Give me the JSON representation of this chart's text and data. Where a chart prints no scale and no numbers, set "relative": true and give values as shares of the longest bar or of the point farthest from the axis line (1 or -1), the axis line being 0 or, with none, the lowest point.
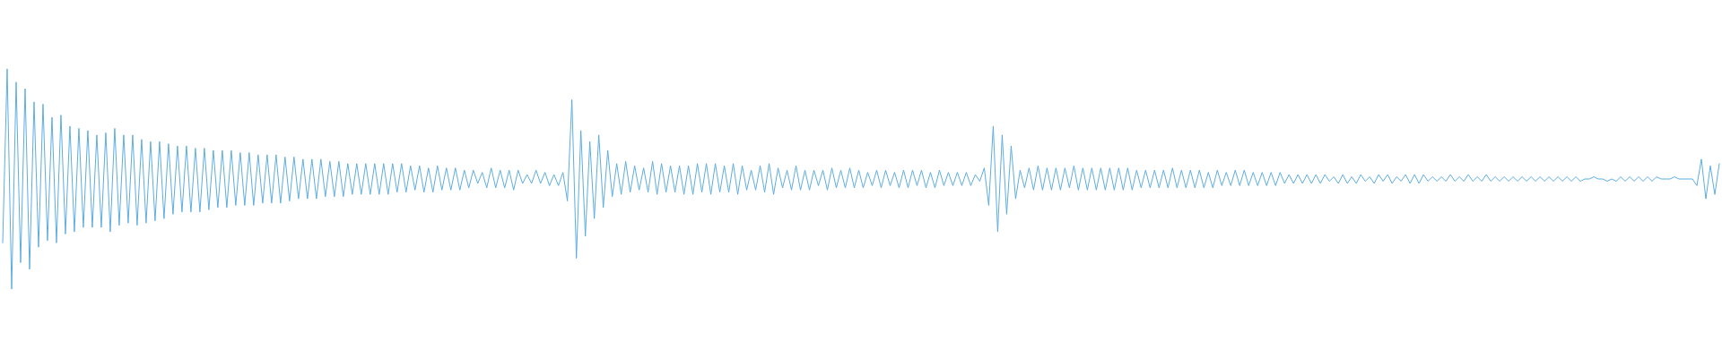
{
  "chart_data": {
    "type": "line",
    "relative": true,
    "marker": "none",
    "color": "#5dade2",
    "categories": [
      null,
      null,
      null,
      null,
      null,
      null,
      null,
      null,
      null,
      null,
      null,
      null,
      null,
      null,
      null,
      null,
      null,
      null,
      null,
      null,
      null,
      null,
      null,
      null,
      null,
      null,
      null,
      null,
      null,
      null,
      null,
      null,
      null,
      null,
      null,
      null,
      null,
      null,
      null,
      null,
      null,
      null,
      null,
      null,
      null,
      null,
      null,
      null,
      null,
      null,
      null,
      null,
      null,
      null,
      null,
      null,
      null,
      null,
      null,
      null,
      null,
      null,
      null,
      null,
      null,
      null,
      null,
      null,
      null,
      null,
      null,
      null,
      null,
      null,
      null,
      null,
      null,
      null,
      null,
      null,
      null,
      null,
      null,
      null,
      null,
      null,
      null,
      null,
      null,
      null,
      null,
      null,
      null,
      null,
      null,
      null,
      null,
      null,
      null,
      null,
      null,
      null,
      null,
      null,
      null,
      null,
      null,
      null,
      null,
      null,
      null,
      null,
      null,
      null,
      null,
      null,
      null,
      null,
      null,
      null,
      null,
      null,
      null,
      null,
      null,
      null,
      null,
      null,
      null,
      null,
      null,
      null,
      null,
      null,
      null,
      null,
      null,
      null,
      null,
      null,
      null,
      null,
      null,
      null,
      null,
      null,
      null,
      null,
      null,
      null,
      null,
      null,
      null,
      null,
      null,
      null,
      null,
      null,
      null,
      null,
      null,
      null,
      null,
      null,
      null,
      null,
      null,
      null,
      null,
      null,
      null,
      null,
      null,
      null,
      null,
      null,
      null,
      null,
      null,
      null,
      null,
      null,
      null,
      null,
      null,
      null,
      null,
      null,
      null,
      null,
      null,
      null,
      null,
      null,
      null,
      null,
      null,
      null,
      null,
      null,
      null,
      null,
      null,
      null,
      null,
      null,
      null,
      null,
      null,
      null,
      null,
      null,
      null,
      null,
      null,
      null,
      null,
      null,
      null,
      null,
      null,
      null,
      null,
      null,
      null,
      null,
      null,
      null,
      null,
      null,
      null,
      null,
      null,
      null,
      null,
      null,
      null,
      null,
      null,
      null,
      null,
      null,
      null,
      null,
      null,
      null,
      null,
      null,
      null,
      null,
      null,
      null,
      null,
      null,
      null,
      null,
      null,
      null,
      null,
      null,
      null,
      null,
      null,
      null,
      null,
      null,
      null,
      null,
      null,
      null,
      null,
      null,
      null,
      null,
      null,
      null,
      null,
      null,
      null,
      null,
      null,
      null,
      null,
      null,
      null,
      null,
      null,
      null,
      null,
      null,
      null,
      null,
      null,
      null,
      null,
      null,
      null,
      null,
      null,
      null,
      null,
      null,
      null,
      null,
      null,
      null,
      null,
      null,
      null,
      null,
      null,
      null,
      null,
      null,
      null,
      null,
      null,
      null,
      null,
      null,
      null,
      null,
      null,
      null,
      null,
      null,
      null,
      null,
      null,
      null,
      null,
      null,
      null,
      null,
      null,
      null,
      null,
      null,
      null,
      null,
      null,
      null,
      null,
      null,
      null,
      null,
      null,
      null,
      null,
      null,
      null,
      null,
      null,
      null,
      null,
      null,
      null,
      null,
      null,
      null,
      null,
      null,
      null,
      null,
      null,
      null,
      null,
      null,
      null,
      null,
      null,
      null,
      null,
      null,
      null,
      null,
      null,
      null,
      null,
      null,
      null,
      null,
      null,
      null
    ],
    "values": [
      0.21,
      1.0,
      0.0,
      0.94,
      0.12,
      0.91,
      0.09,
      0.85,
      0.19,
      0.84,
      0.22,
      0.78,
      0.21,
      0.79,
      0.25,
      0.74,
      0.26,
      0.73,
      0.28,
      0.72,
      0.28,
      0.7,
      0.28,
      0.71,
      0.26,
      0.73,
      0.29,
      0.7,
      0.3,
      0.7,
      0.29,
      0.68,
      0.3,
      0.67,
      0.31,
      0.67,
      0.32,
      0.66,
      0.34,
      0.65,
      0.35,
      0.65,
      0.35,
      0.64,
      0.35,
      0.64,
      0.36,
      0.63,
      0.37,
      0.63,
      0.37,
      0.63,
      0.38,
      0.62,
      0.38,
      0.62,
      0.38,
      0.61,
      0.39,
      0.61,
      0.39,
      0.61,
      0.39,
      0.6,
      0.4,
      0.6,
      0.41,
      0.59,
      0.41,
      0.59,
      0.41,
      0.59,
      0.42,
      0.58,
      0.42,
      0.58,
      0.42,
      0.57,
      0.43,
      0.57,
      0.43,
      0.57,
      0.43,
      0.57,
      0.43,
      0.57,
      0.43,
      0.57,
      0.44,
      0.57,
      0.44,
      0.56,
      0.45,
      0.56,
      0.44,
      0.55,
      0.44,
      0.56,
      0.45,
      0.55,
      0.45,
      0.55,
      0.45,
      0.54,
      0.46,
      0.54,
      0.48,
      0.53,
      0.46,
      0.55,
      0.46,
      0.54,
      0.46,
      0.54,
      0.45,
      0.54,
      0.48,
      0.52,
      0.48,
      0.54,
      0.48,
      0.53,
      0.47,
      0.52,
      0.47,
      0.53,
      0.4,
      0.86,
      0.14,
      0.72,
      0.24,
      0.67,
      0.32,
      0.7,
      0.37,
      0.63,
      0.42,
      0.57,
      0.43,
      0.58,
      0.44,
      0.56,
      0.45,
      0.55,
      0.44,
      0.58,
      0.43,
      0.57,
      0.44,
      0.56,
      0.44,
      0.56,
      0.43,
      0.56,
      0.43,
      0.57,
      0.44,
      0.57,
      0.43,
      0.57,
      0.44,
      0.56,
      0.44,
      0.57,
      0.43,
      0.56,
      0.45,
      0.54,
      0.45,
      0.56,
      0.44,
      0.57,
      0.43,
      0.55,
      0.46,
      0.54,
      0.45,
      0.56,
      0.45,
      0.54,
      0.45,
      0.54,
      0.47,
      0.54,
      0.45,
      0.55,
      0.46,
      0.54,
      0.46,
      0.55,
      0.46,
      0.54,
      0.46,
      0.53,
      0.47,
      0.54,
      0.46,
      0.54,
      0.47,
      0.53,
      0.46,
      0.54,
      0.46,
      0.54,
      0.47,
      0.54,
      0.46,
      0.53,
      0.46,
      0.54,
      0.47,
      0.53,
      0.47,
      0.53,
      0.47,
      0.53,
      0.47,
      0.52,
      0.49,
      0.55,
      0.38,
      0.74,
      0.26,
      0.7,
      0.34,
      0.65,
      0.41,
      0.54,
      0.46,
      0.55,
      0.45,
      0.56,
      0.45,
      0.55,
      0.45,
      0.55,
      0.45,
      0.55,
      0.46,
      0.56,
      0.45,
      0.55,
      0.45,
      0.55,
      0.45,
      0.55,
      0.45,
      0.55,
      0.45,
      0.55,
      0.45,
      0.55,
      0.45,
      0.54,
      0.46,
      0.54,
      0.46,
      0.54,
      0.46,
      0.54,
      0.46,
      0.55,
      0.46,
      0.54,
      0.46,
      0.54,
      0.46,
      0.54,
      0.46,
      0.53,
      0.46,
      0.54,
      0.47,
      0.53,
      0.47,
      0.54,
      0.47,
      0.54,
      0.47,
      0.53,
      0.47,
      0.53,
      0.47,
      0.53,
      0.47,
      0.53,
      0.48,
      0.52,
      0.48,
      0.52,
      0.48,
      0.52,
      0.48,
      0.52,
      0.48,
      0.52,
      0.49,
      0.51,
      0.48,
      0.52,
      0.48,
      0.51,
      0.48,
      0.52,
      0.49,
      0.51,
      0.48,
      0.52,
      0.49,
      0.52,
      0.48,
      0.51,
      0.49,
      0.52,
      0.48,
      0.52,
      0.48,
      0.52,
      0.49,
      0.51,
      0.49,
      0.51,
      0.49,
      0.52,
      0.49,
      0.51,
      0.49,
      0.52,
      0.49,
      0.51,
      0.49,
      0.52,
      0.49,
      0.51,
      0.49,
      0.51,
      0.49,
      0.51,
      0.49,
      0.51,
      0.49,
      0.51,
      0.49,
      0.51,
      0.49,
      0.51,
      0.49,
      0.51,
      0.49,
      0.51,
      0.49,
      0.51,
      0.49,
      0.5,
      0.5,
      0.51,
      0.5,
      0.5,
      0.49,
      0.5,
      0.49,
      0.51,
      0.49,
      0.51,
      0.49,
      0.51,
      0.49,
      0.51,
      0.49,
      0.51,
      0.5,
      0.5,
      0.5,
      0.51,
      0.5,
      0.5,
      0.5,
      0.5,
      0.47,
      0.59,
      0.41,
      0.56,
      0.43,
      0.57
    ]
  }
}
